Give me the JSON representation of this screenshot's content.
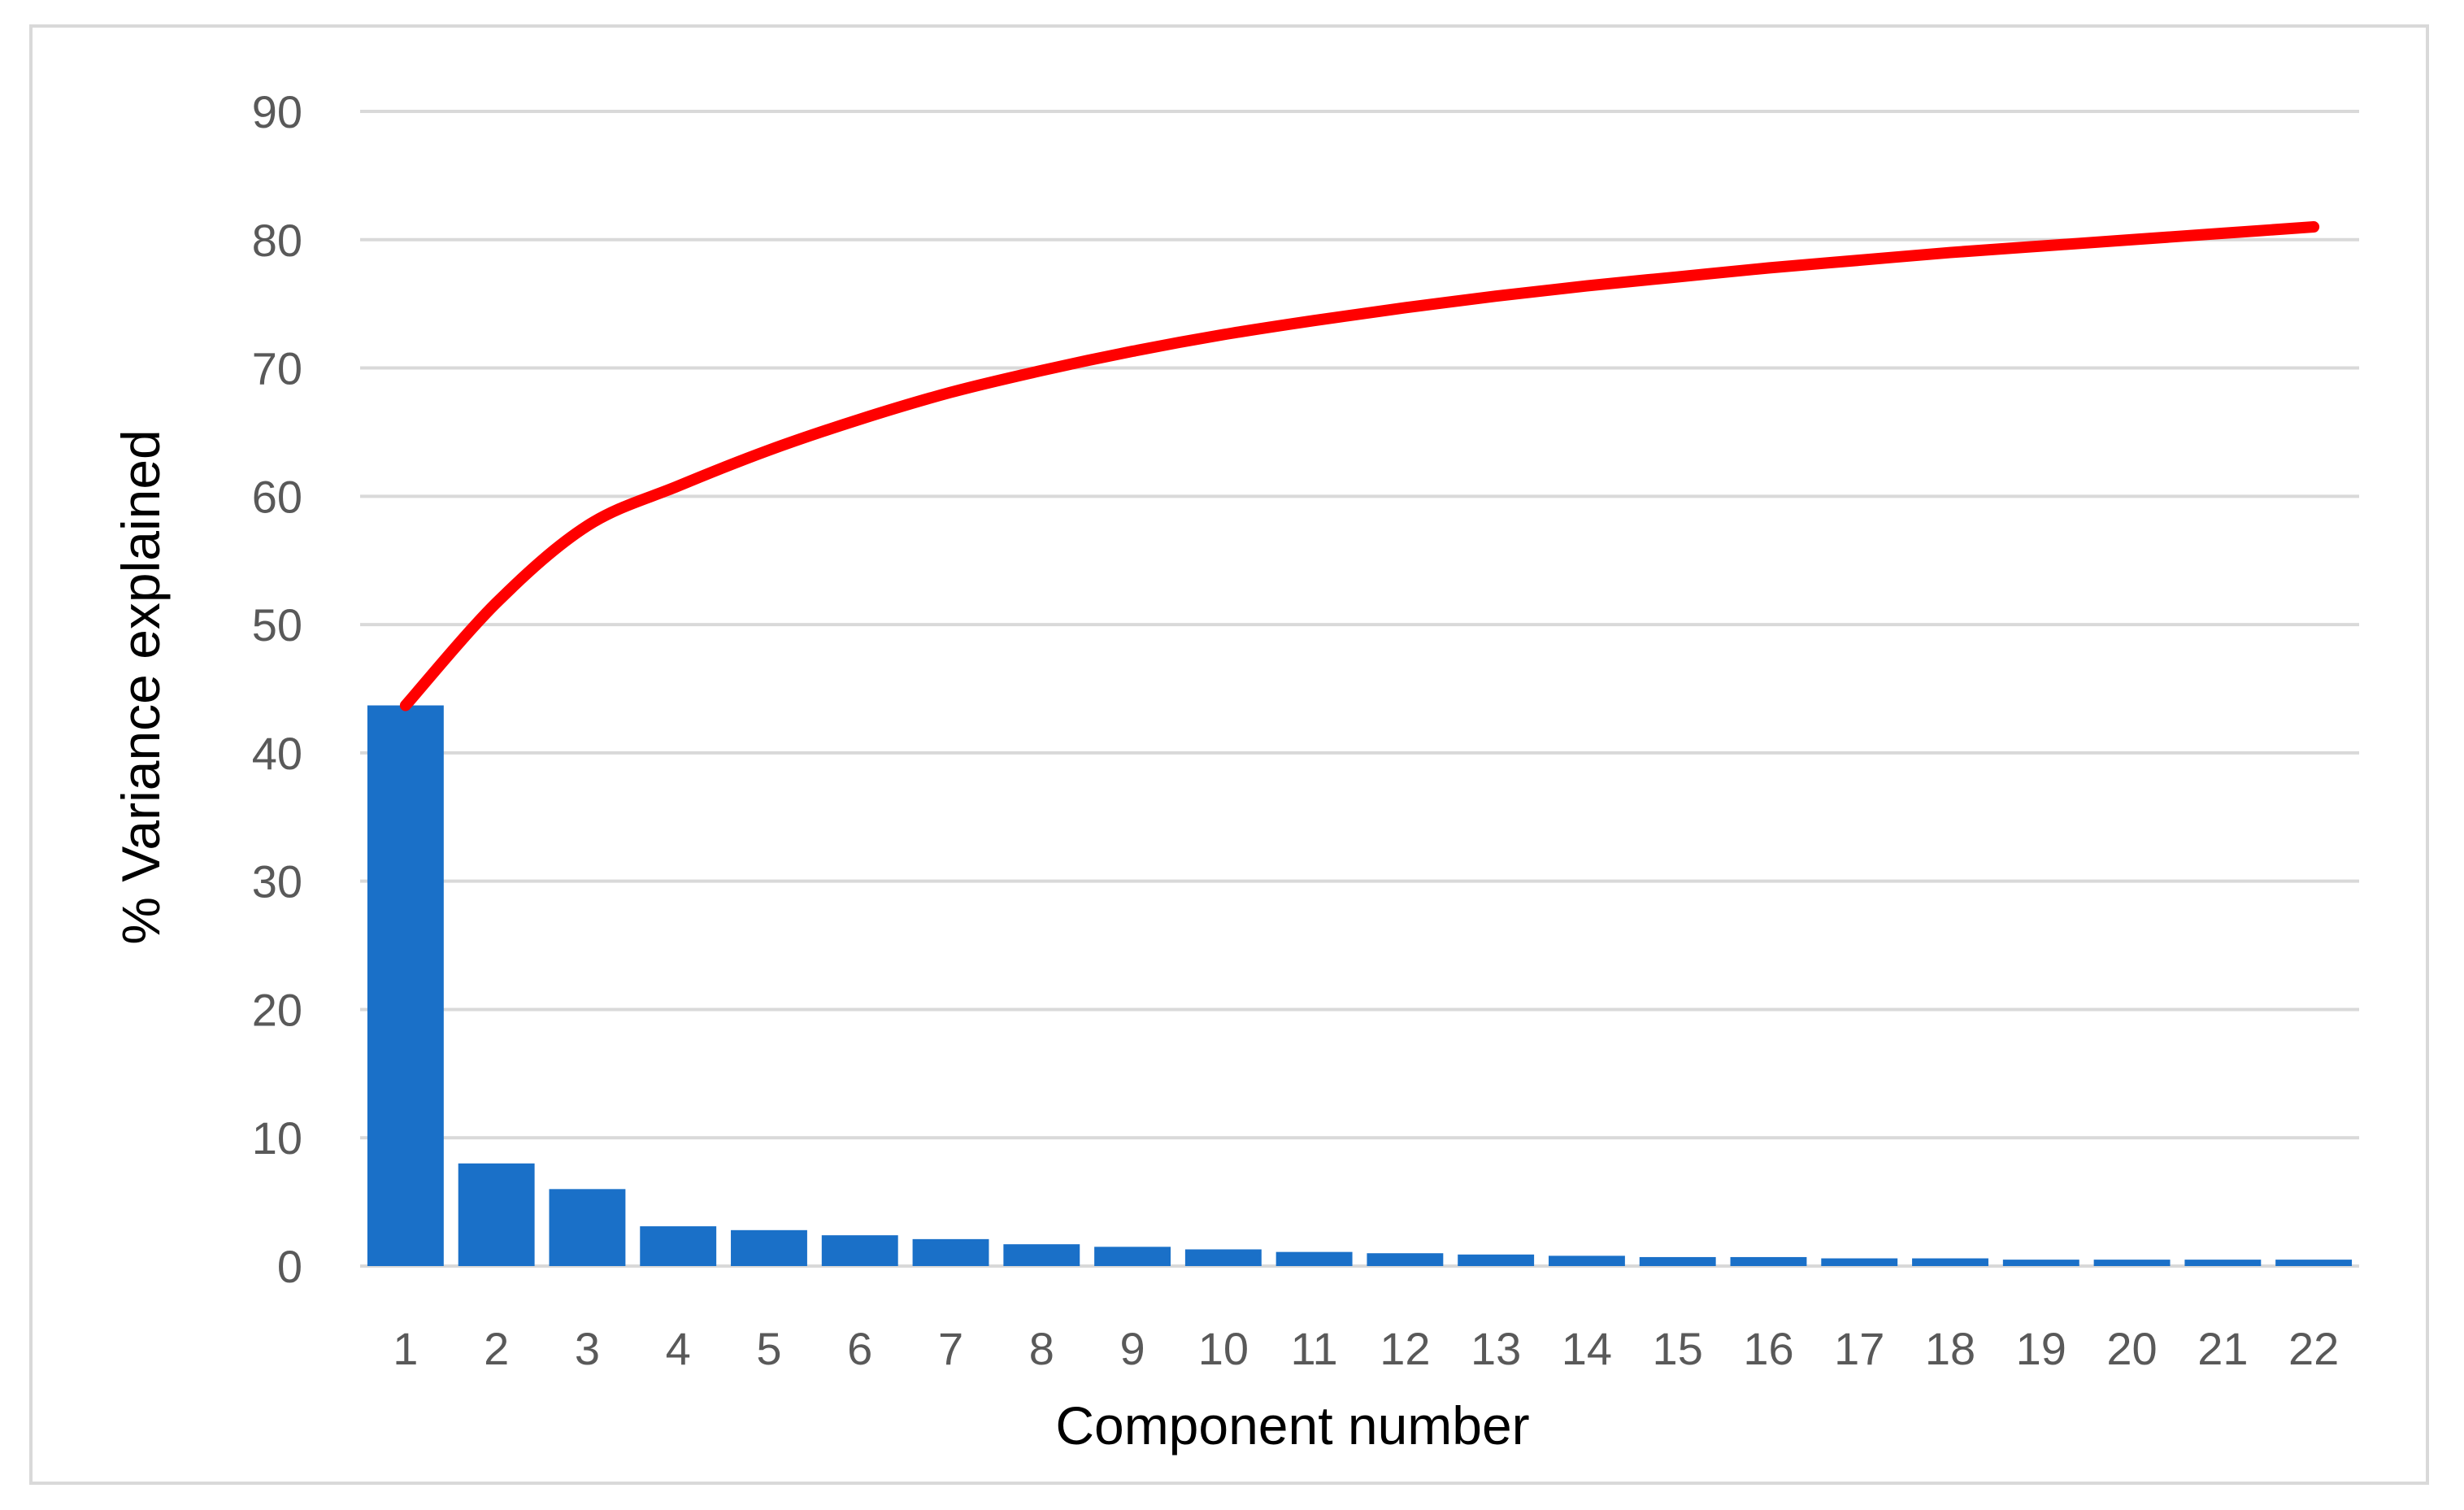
{
  "chart_data": {
    "type": "bar",
    "title": "",
    "xlabel": "Component number",
    "ylabel": "% Variance explained",
    "categories": [
      "1",
      "2",
      "3",
      "4",
      "5",
      "6",
      "7",
      "8",
      "9",
      "10",
      "11",
      "12",
      "13",
      "14",
      "15",
      "16",
      "17",
      "18",
      "19",
      "20",
      "21",
      "22"
    ],
    "ylim": [
      0,
      90
    ],
    "yticks": [
      0,
      10,
      20,
      30,
      40,
      50,
      60,
      70,
      80,
      90
    ],
    "grid": true,
    "legend": "none",
    "series": [
      {
        "type": "bar",
        "color": "#1a70c8",
        "values": [
          43.7,
          8.0,
          6.0,
          3.1,
          2.8,
          2.4,
          2.1,
          1.7,
          1.5,
          1.3,
          1.1,
          1.0,
          0.9,
          0.8,
          0.7,
          0.7,
          0.6,
          0.6,
          0.5,
          0.5,
          0.5,
          0.5
        ]
      },
      {
        "type": "line",
        "color": "#ff0000",
        "values": [
          43.7,
          51.7,
          57.7,
          60.8,
          63.6,
          66.0,
          68.1,
          69.8,
          71.3,
          72.6,
          73.7,
          74.7,
          75.6,
          76.4,
          77.1,
          77.8,
          78.4,
          79.0,
          79.5,
          80.0,
          80.5,
          81.0
        ]
      }
    ]
  }
}
